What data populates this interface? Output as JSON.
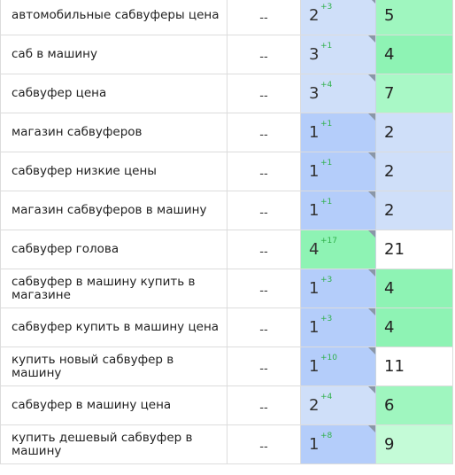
{
  "palette": {
    "pos_light_blue": "#cfdff9",
    "pos_mid_blue": "#b4cdfa",
    "pos_green": "#8ef3b4",
    "val_green_strong": "#8ef3b4",
    "val_green_medium": "#9ff6bf",
    "val_green_light": "#c4fbd7",
    "val_blue": "#cfdff9",
    "val_white": "#ffffff",
    "delta_green": "#2fb04a"
  },
  "icons": {
    "position_corner": "triangle-corner-icon"
  },
  "rows": [
    {
      "query": "автомобильные сабвуферы цена",
      "dash": "--",
      "position": "2",
      "delta": "+3",
      "value": "5",
      "pos_color": "#cfdff9",
      "val_color": "#9ff6bf"
    },
    {
      "query": "саб в машину",
      "dash": "--",
      "position": "3",
      "delta": "+1",
      "value": "4",
      "pos_color": "#cfdff9",
      "val_color": "#8ef3b4"
    },
    {
      "query": "сабвуфер цена",
      "dash": "--",
      "position": "3",
      "delta": "+4",
      "value": "7",
      "pos_color": "#cfdff9",
      "val_color": "#a9f8c6"
    },
    {
      "query": "магазин сабвуферов",
      "dash": "--",
      "position": "1",
      "delta": "+1",
      "value": "2",
      "pos_color": "#b4cdfa",
      "val_color": "#cfdff9"
    },
    {
      "query": "сабвуфер низкие цены",
      "dash": "--",
      "position": "1",
      "delta": "+1",
      "value": "2",
      "pos_color": "#b4cdfa",
      "val_color": "#cfdff9"
    },
    {
      "query": "магазин сабвуферов в машину",
      "dash": "--",
      "position": "1",
      "delta": "+1",
      "value": "2",
      "pos_color": "#b4cdfa",
      "val_color": "#cfdff9"
    },
    {
      "query": "сабвуфер голова",
      "dash": "--",
      "position": "4",
      "delta": "+17",
      "value": "21",
      "pos_color": "#8ef3b4",
      "val_color": "#ffffff"
    },
    {
      "query": "сабвуфер в машину купить в магазине",
      "dash": "--",
      "position": "1",
      "delta": "+3",
      "value": "4",
      "pos_color": "#b4cdfa",
      "val_color": "#8ef3b4"
    },
    {
      "query": "сабвуфер купить в машину цена",
      "dash": "--",
      "position": "1",
      "delta": "+3",
      "value": "4",
      "pos_color": "#b4cdfa",
      "val_color": "#8ef3b4"
    },
    {
      "query": "купить новый сабвуфер в машину",
      "dash": "--",
      "position": "1",
      "delta": "+10",
      "value": "11",
      "pos_color": "#b4cdfa",
      "val_color": "#ffffff"
    },
    {
      "query": "сабвуфер в машину цена",
      "dash": "--",
      "position": "2",
      "delta": "+4",
      "value": "6",
      "pos_color": "#cfdff9",
      "val_color": "#9ff6bf"
    },
    {
      "query": "купить дешевый сабвуфер в машину",
      "dash": "--",
      "position": "1",
      "delta": "+8",
      "value": "9",
      "pos_color": "#b4cdfa",
      "val_color": "#c4fbd7"
    }
  ]
}
